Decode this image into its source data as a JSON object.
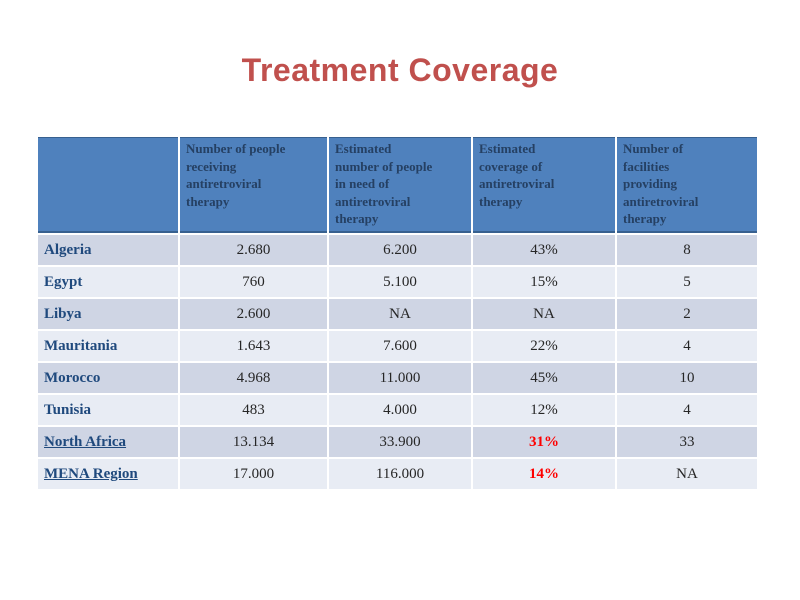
{
  "slide": {
    "title": "Treatment Coverage"
  },
  "table": {
    "columns": [
      "",
      "Number of people\nreceiving\nantiretroviral\ntherapy",
      "Estimated\nnumber of people\nin need of\nantiretroviral\ntherapy",
      "Estimated\ncoverage of\nantiretroviral\ntherapy",
      "Number of\nfacilities\nproviding\nantiretroviral\ntherapy"
    ],
    "rows": [
      {
        "region": "Algeria",
        "receiving": "2.680",
        "in_need": "6.200",
        "coverage": "43%",
        "facilities": "8"
      },
      {
        "region": "Egypt",
        "receiving": "760",
        "in_need": "5.100",
        "coverage": "15%",
        "facilities": "5"
      },
      {
        "region": "Libya",
        "receiving": "2.600",
        "in_need": "NA",
        "coverage": "NA",
        "facilities": "2"
      },
      {
        "region": "Mauritania",
        "receiving": "1.643",
        "in_need": "7.600",
        "coverage": "22%",
        "facilities": "4"
      },
      {
        "region": "Morocco",
        "receiving": "4.968",
        "in_need": "11.000",
        "coverage": "45%",
        "facilities": "10"
      },
      {
        "region": "Tunisia",
        "receiving": "483",
        "in_need": "4.000",
        "coverage": "12%",
        "facilities": "4"
      },
      {
        "region": "North Africa",
        "receiving": "13.134",
        "in_need": "33.900",
        "coverage": "31%",
        "facilities": "33"
      },
      {
        "region": "MENA Region",
        "receiving": "17.000",
        "in_need": "116.000",
        "coverage": "14%",
        "facilities": "NA"
      }
    ]
  },
  "colors": {
    "title-red": "#C0504D",
    "header-bg": "#4F81BD",
    "header-text": "#254063",
    "header-edge": "#37608F",
    "label-blue": "#1F497D",
    "row-odd": "#CFD5E4",
    "row-even": "#E8ECF4",
    "body-text": "#262626",
    "alert-red": "#FE0000"
  }
}
